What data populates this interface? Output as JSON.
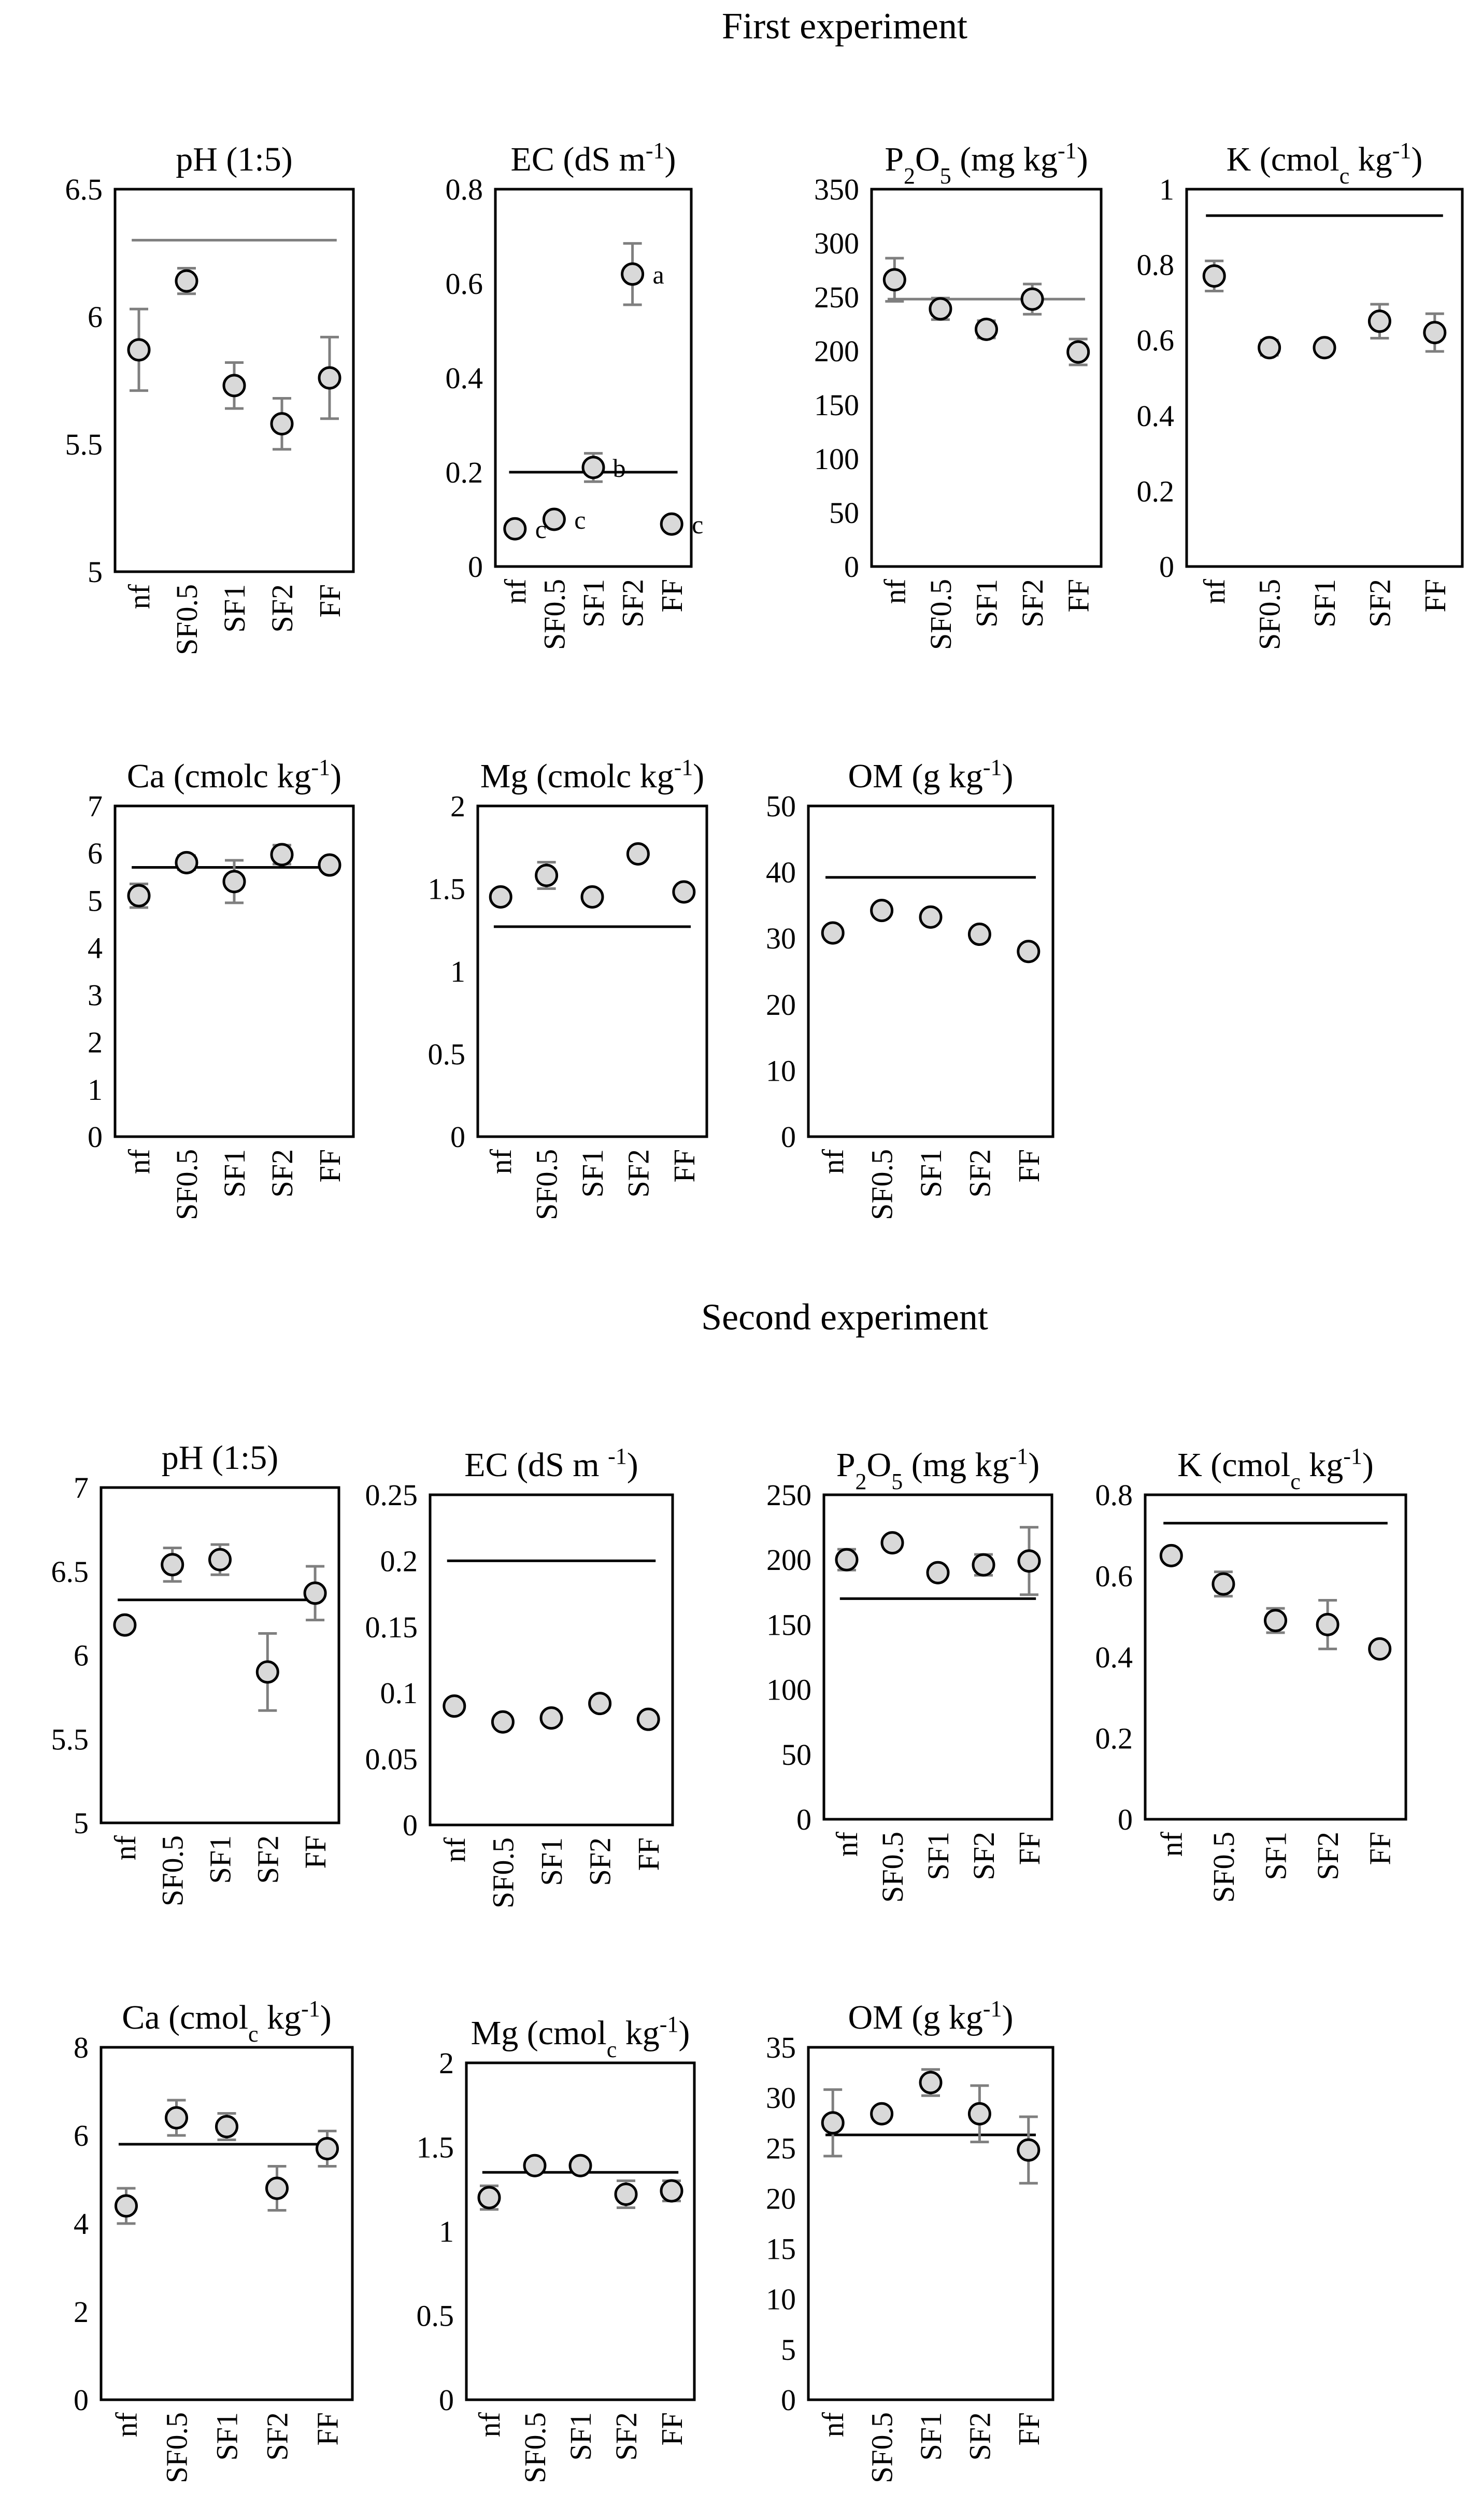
{
  "experiments": [
    {
      "title": "First experiment",
      "charts": [
        "pH",
        "EC",
        "P2O5",
        "K",
        "Ca",
        "Mg",
        "OM"
      ]
    },
    {
      "title": "Second experiment",
      "charts": [
        "pH",
        "EC",
        "P2O5",
        "K",
        "Ca",
        "Mg",
        "OM"
      ]
    }
  ],
  "colors": {
    "axis": "#000000",
    "marker_fill": "#d9d9d9",
    "marker_stroke": "#000000",
    "error_bar": "#7f7f7f",
    "ref_line_black": "#000000",
    "ref_line_gray": "#7f7f7f"
  },
  "chart_data": [
    {
      "experiment": "First experiment",
      "type": "scatter",
      "title": "pH (1:5)",
      "title_parts": [
        {
          "t": "pH (1:5)"
        }
      ],
      "categories": [
        "nf",
        "SF0.5",
        "SF1",
        "SF2",
        "FF"
      ],
      "ylim": [
        5,
        6.5
      ],
      "yticks": [
        "5",
        "5.5",
        "6",
        "6.5"
      ],
      "values": [
        5.87,
        6.14,
        5.73,
        5.58,
        5.76
      ],
      "errors": [
        0.16,
        0.05,
        0.09,
        0.1,
        0.16
      ],
      "reference_line": 6.3,
      "reference_color": "gray",
      "significance_letters": [],
      "grid": false
    },
    {
      "experiment": "First experiment",
      "type": "scatter",
      "title": "EC (dS m-1)",
      "title_parts": [
        {
          "t": "EC (dS m"
        },
        {
          "t": "-1",
          "sup": true
        },
        {
          "t": ")"
        }
      ],
      "categories": [
        "nf",
        "SF0.5",
        "SF1",
        "SF2",
        "FF"
      ],
      "ylim": [
        0,
        0.8
      ],
      "yticks": [
        "0",
        "0.2",
        "0.4",
        "0.6",
        "0.8"
      ],
      "values": [
        0.08,
        0.1,
        0.21,
        0.62,
        0.09
      ],
      "errors": [
        0,
        0,
        0.03,
        0.065,
        0
      ],
      "reference_line": 0.2,
      "reference_color": "black",
      "significance_letters": [
        "c",
        "c",
        "b",
        "a",
        "c"
      ],
      "grid": false
    },
    {
      "experiment": "First experiment",
      "type": "scatter",
      "title": "P2O5 (mg kg-1)",
      "title_parts": [
        {
          "t": "P"
        },
        {
          "t": "2",
          "sub": true
        },
        {
          "t": "O"
        },
        {
          "t": "5",
          "sub": true
        },
        {
          "t": " (mg kg"
        },
        {
          "t": "-1",
          "sup": true
        },
        {
          "t": ")"
        }
      ],
      "categories": [
        "nf",
        "SF0.5",
        "SF1",
        "SF2",
        "FF"
      ],
      "ylim": [
        0,
        350
      ],
      "yticks": [
        "0",
        "50",
        "100",
        "150",
        "200",
        "250",
        "300",
        "350"
      ],
      "values": [
        266,
        239,
        220,
        248,
        199
      ],
      "errors": [
        20,
        10,
        8,
        14,
        12
      ],
      "reference_line": 248,
      "reference_color": "gray",
      "significance_letters": [],
      "grid": false
    },
    {
      "experiment": "First experiment",
      "type": "scatter",
      "title": "K (cmolc kg-1)",
      "title_parts": [
        {
          "t": "K (cmol"
        },
        {
          "t": "c",
          "sub": true
        },
        {
          "t": " kg"
        },
        {
          "t": "-1",
          "sup": true
        },
        {
          "t": ")"
        }
      ],
      "categories": [
        "nf",
        "SF0.5",
        "SF1",
        "SF2",
        "FF"
      ],
      "ylim": [
        0,
        1
      ],
      "yticks": [
        "0",
        "0.2",
        "0.4",
        "0.6",
        "0.8",
        "1"
      ],
      "values": [
        0.77,
        0.58,
        0.58,
        0.65,
        0.62
      ],
      "errors": [
        0.04,
        0.02,
        0.01,
        0.045,
        0.05
      ],
      "reference_line": 0.93,
      "reference_color": "black",
      "significance_letters": [],
      "grid": false
    },
    {
      "experiment": "First experiment",
      "type": "scatter",
      "title": "Ca (cmolc kg-1)",
      "title_parts": [
        {
          "t": "Ca (cmolc kg"
        },
        {
          "t": "-1",
          "sup": true
        },
        {
          "t": ")"
        }
      ],
      "categories": [
        "nf",
        "SF0.5",
        "SF1",
        "SF2",
        "FF"
      ],
      "ylim": [
        0,
        7
      ],
      "yticks": [
        "0",
        "1",
        "2",
        "3",
        "4",
        "5",
        "6",
        "7"
      ],
      "values": [
        5.1,
        5.8,
        5.4,
        5.97,
        5.75
      ],
      "errors": [
        0.25,
        0.15,
        0.45,
        0.2,
        0.1
      ],
      "reference_line": 5.7,
      "reference_color": "black",
      "significance_letters": [],
      "grid": false
    },
    {
      "experiment": "First experiment",
      "type": "scatter",
      "title": "Mg (cmolc kg-1)",
      "title_parts": [
        {
          "t": "Mg (cmolc kg"
        },
        {
          "t": "-1",
          "sup": true
        },
        {
          "t": ")"
        }
      ],
      "categories": [
        "nf",
        "SF0.5",
        "SF1",
        "SF2",
        "FF"
      ],
      "ylim": [
        0,
        2
      ],
      "yticks": [
        "0",
        "0.5",
        "1",
        "1.5",
        "2"
      ],
      "values": [
        1.45,
        1.58,
        1.45,
        1.71,
        1.48
      ],
      "errors": [
        0,
        0.08,
        0,
        0,
        0
      ],
      "reference_line": 1.27,
      "reference_color": "black",
      "significance_letters": [],
      "grid": false
    },
    {
      "experiment": "First experiment",
      "type": "scatter",
      "title": "OM (g kg-1)",
      "title_parts": [
        {
          "t": "OM (g kg"
        },
        {
          "t": "-1",
          "sup": true
        },
        {
          "t": ")"
        }
      ],
      "categories": [
        "nf",
        "SF0.5",
        "SF1",
        "SF2",
        "FF"
      ],
      "ylim": [
        0,
        50
      ],
      "yticks": [
        "0",
        "10",
        "20",
        "30",
        "40",
        "50"
      ],
      "values": [
        30.8,
        34.2,
        33.2,
        30.6,
        28.0
      ],
      "errors": [
        0,
        0,
        0,
        0,
        0
      ],
      "reference_line": 39.2,
      "reference_color": "black",
      "significance_letters": [],
      "grid": false
    },
    {
      "experiment": "Second experiment",
      "type": "scatter",
      "title": "pH (1:5)",
      "title_parts": [
        {
          "t": "pH (1:5)"
        }
      ],
      "categories": [
        "nf",
        "SF0.5",
        "SF1",
        "SF2",
        "FF"
      ],
      "ylim": [
        5,
        7
      ],
      "yticks": [
        "5",
        "5.5",
        "6",
        "6.5",
        "7"
      ],
      "values": [
        6.18,
        6.54,
        6.57,
        5.9,
        6.37
      ],
      "errors": [
        0,
        0.1,
        0.09,
        0.23,
        0.16
      ],
      "reference_line": 6.33,
      "reference_color": "black",
      "significance_letters": [],
      "grid": false
    },
    {
      "experiment": "Second experiment",
      "type": "scatter",
      "title": "EC (dS m -1)",
      "title_parts": [
        {
          "t": "EC (dS m "
        },
        {
          "t": "-1",
          "sup": true
        },
        {
          "t": ")"
        }
      ],
      "categories": [
        "nf",
        "SF0.5",
        "SF1",
        "SF2",
        "FF"
      ],
      "ylim": [
        0,
        0.25
      ],
      "yticks": [
        "0",
        "0.05",
        "0.1",
        "0.15",
        "0.2",
        "0.25"
      ],
      "values": [
        0.09,
        0.078,
        0.081,
        0.092,
        0.08
      ],
      "errors": [
        0,
        0,
        0,
        0,
        0
      ],
      "reference_line": 0.2,
      "reference_color": "black",
      "significance_letters": [],
      "grid": false
    },
    {
      "experiment": "Second experiment",
      "type": "scatter",
      "title": "P2O5 (mg kg-1)",
      "title_parts": [
        {
          "t": "P"
        },
        {
          "t": "2",
          "sub": true
        },
        {
          "t": "O"
        },
        {
          "t": "5",
          "sub": true
        },
        {
          "t": " (mg kg"
        },
        {
          "t": "-1",
          "sup": true
        },
        {
          "t": ")"
        }
      ],
      "categories": [
        "nf",
        "SF0.5",
        "SF1",
        "SF2",
        "FF"
      ],
      "ylim": [
        0,
        250
      ],
      "yticks": [
        "0",
        "50",
        "100",
        "150",
        "200",
        "250"
      ],
      "values": [
        200,
        213,
        190,
        196,
        199
      ],
      "errors": [
        8,
        0,
        0,
        8,
        26
      ],
      "reference_line": 170,
      "reference_color": "black",
      "significance_letters": [],
      "grid": false
    },
    {
      "experiment": "Second experiment",
      "type": "scatter",
      "title": "K (cmolc kg-1)",
      "title_parts": [
        {
          "t": "K (cmol"
        },
        {
          "t": "c",
          "sub": true
        },
        {
          "t": " kg"
        },
        {
          "t": "-1",
          "sup": true
        },
        {
          "t": ")"
        }
      ],
      "categories": [
        "nf",
        "SF0.5",
        "SF1",
        "SF2",
        "FF"
      ],
      "ylim": [
        0,
        0.8
      ],
      "yticks": [
        "0",
        "0.2",
        "0.4",
        "0.6",
        "0.8"
      ],
      "values": [
        0.65,
        0.58,
        0.49,
        0.48,
        0.42
      ],
      "errors": [
        0,
        0.03,
        0.03,
        0.06,
        0
      ],
      "reference_line": 0.73,
      "reference_color": "black",
      "significance_letters": [],
      "grid": false
    },
    {
      "experiment": "Second experiment",
      "type": "scatter",
      "title": "Ca (cmolc kg-1)",
      "title_parts": [
        {
          "t": "Ca (cmol"
        },
        {
          "t": "c",
          "sub": true
        },
        {
          "t": " kg"
        },
        {
          "t": "-1",
          "sup": true
        },
        {
          "t": ")"
        }
      ],
      "categories": [
        "nf",
        "SF0.5",
        "SF1",
        "SF2",
        "FF"
      ],
      "ylim": [
        0,
        8
      ],
      "yticks": [
        "0",
        "2",
        "4",
        "6",
        "8"
      ],
      "values": [
        4.4,
        6.4,
        6.2,
        4.8,
        5.7
      ],
      "errors": [
        0.4,
        0.4,
        0.3,
        0.5,
        0.4
      ],
      "reference_line": 5.8,
      "reference_color": "black",
      "significance_letters": [],
      "grid": false
    },
    {
      "experiment": "Second experiment",
      "type": "scatter",
      "title": "Mg (cmolc kg-1)",
      "title_parts": [
        {
          "t": "Mg (cmol"
        },
        {
          "t": "c",
          "sub": true
        },
        {
          "t": " kg"
        },
        {
          "t": "-1",
          "sup": true
        },
        {
          "t": ")"
        }
      ],
      "categories": [
        "nf",
        "SF0.5",
        "SF1",
        "SF2",
        "FF"
      ],
      "ylim": [
        0,
        2
      ],
      "yticks": [
        "0",
        "0.5",
        "1",
        "1.5",
        "2"
      ],
      "values": [
        1.2,
        1.39,
        1.39,
        1.22,
        1.24
      ],
      "errors": [
        0.07,
        0,
        0,
        0.08,
        0.06
      ],
      "reference_line": 1.35,
      "reference_color": "black",
      "significance_letters": [],
      "grid": false
    },
    {
      "experiment": "Second experiment",
      "type": "scatter",
      "title": "OM (g kg-1)",
      "title_parts": [
        {
          "t": "OM (g kg"
        },
        {
          "t": "-1",
          "sup": true
        },
        {
          "t": ")"
        }
      ],
      "categories": [
        "nf",
        "SF0.5",
        "SF1",
        "SF2",
        "FF"
      ],
      "ylim": [
        0,
        35
      ],
      "yticks": [
        "0",
        "5",
        "10",
        "15",
        "20",
        "25",
        "30",
        "35"
      ],
      "values": [
        27.5,
        28.4,
        31.5,
        28.4,
        24.8
      ],
      "errors": [
        3.3,
        0,
        1.3,
        2.8,
        3.3
      ],
      "reference_line": 26.3,
      "reference_color": "black",
      "significance_letters": [],
      "grid": false
    }
  ]
}
